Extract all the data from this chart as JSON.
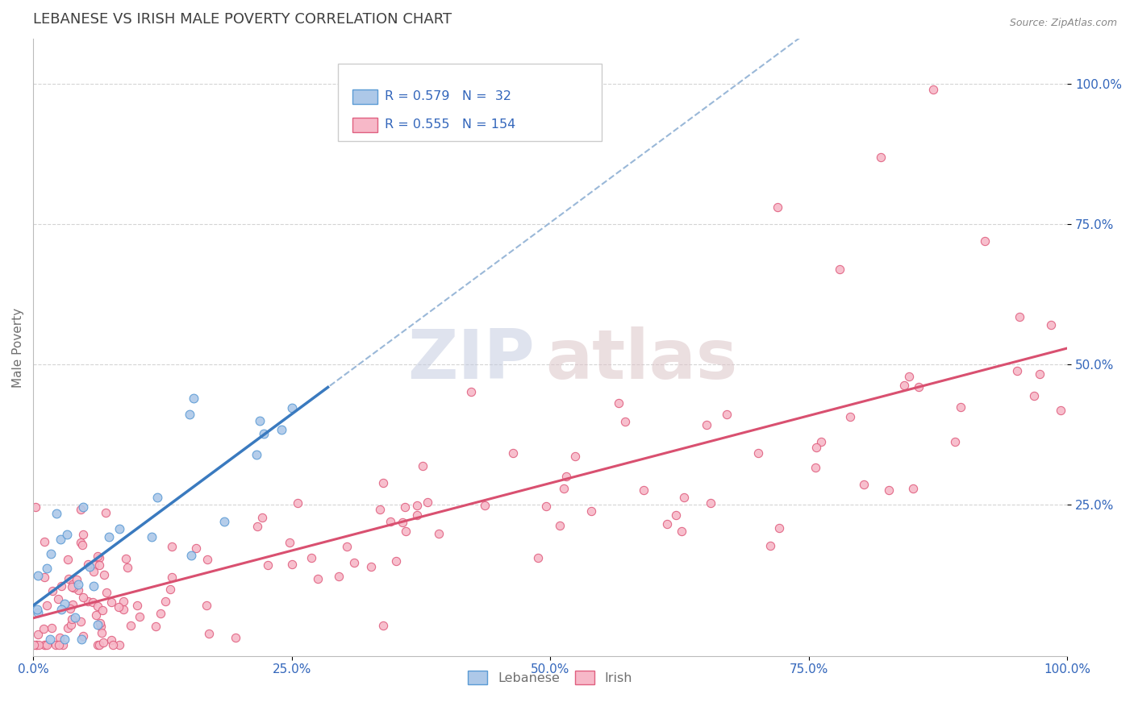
{
  "title": "LEBANESE VS IRISH MALE POVERTY CORRELATION CHART",
  "source_text": "Source: ZipAtlas.com",
  "ylabel": "Male Poverty",
  "xlim": [
    0.0,
    1.0
  ],
  "ylim": [
    -0.02,
    1.08
  ],
  "xtick_labels": [
    "0.0%",
    "25.0%",
    "50.0%",
    "75.0%",
    "100.0%"
  ],
  "xtick_vals": [
    0.0,
    0.25,
    0.5,
    0.75,
    1.0
  ],
  "ytick_labels": [
    "25.0%",
    "50.0%",
    "75.0%",
    "100.0%"
  ],
  "ytick_vals": [
    0.25,
    0.5,
    0.75,
    1.0
  ],
  "legend_line1": "R = 0.579   N =  32",
  "legend_line2": "R = 0.555   N = 154",
  "color_leb_fill": "#adc8e8",
  "color_leb_edge": "#5b9bd5",
  "color_irish_fill": "#f7b8c8",
  "color_irish_edge": "#e06080",
  "color_trendline_leb": "#3a7abf",
  "color_trendline_irish": "#d95070",
  "color_dashed": "#9ab8d8",
  "title_color": "#404040",
  "axis_label_color": "#707070",
  "tick_color": "#3366bb",
  "grid_color": "#d0d0d0",
  "watermark_zip_color": "#c5cce0",
  "watermark_atlas_color": "#dcc5c8",
  "source_color": "#888888"
}
